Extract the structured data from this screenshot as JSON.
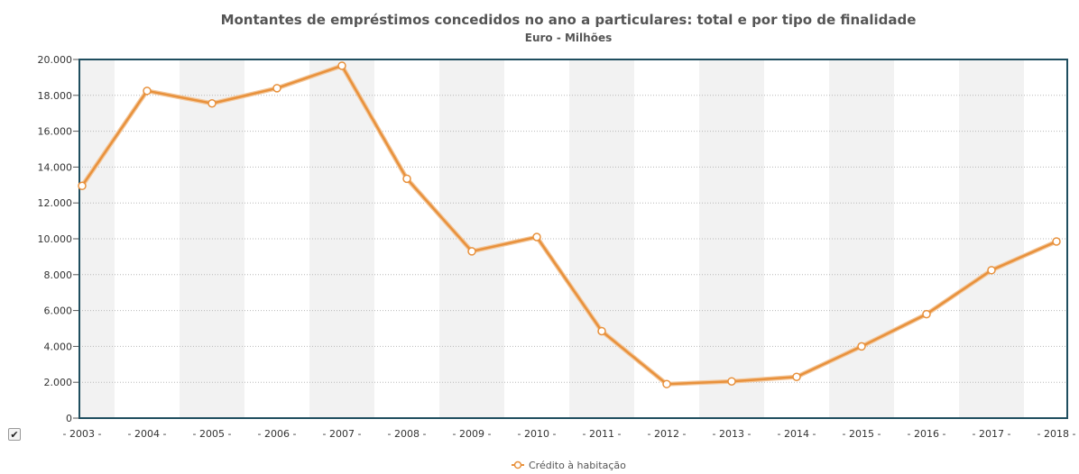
{
  "chart_data": {
    "type": "line",
    "title": "Montantes de empréstimos concedidos no ano a particulares: total e por tipo de finalidade",
    "subtitle": "Euro - Milhões",
    "categories": [
      "2003",
      "2004",
      "2005",
      "2006",
      "2007",
      "2008",
      "2009",
      "2010",
      "2011",
      "2012",
      "2013",
      "2014",
      "2015",
      "2016",
      "2017",
      "2018"
    ],
    "category_labels": [
      "- 2003 -",
      "- 2004 -",
      "- 2005 -",
      "- 2006 -",
      "- 2007 -",
      "- 2008 -",
      "- 2009 -",
      "- 2010 -",
      "- 2011 -",
      "- 2012 -",
      "- 2013 -",
      "- 2014 -",
      "- 2015 -",
      "- 2016 -",
      "- 2017 -",
      "- 2018 -"
    ],
    "series": [
      {
        "name": "Crédito à habitação",
        "color": "#e8913c",
        "values": [
          12950,
          18250,
          17550,
          18400,
          19650,
          13350,
          9300,
          10100,
          4850,
          1900,
          2050,
          2300,
          4000,
          5800,
          8250,
          9850
        ]
      }
    ],
    "ylim": [
      0,
      20000
    ],
    "y_ticks": [
      0,
      2000,
      4000,
      6000,
      8000,
      10000,
      12000,
      14000,
      16000,
      18000,
      20000
    ],
    "y_tick_labels": [
      "0",
      "2.000",
      "4.000",
      "6.000",
      "8.000",
      "10.000",
      "12.000",
      "14.000",
      "16.000",
      "18.000",
      "20.000"
    ],
    "grid": true,
    "legend": "bottom-center",
    "frame_color": "#1f4e5f",
    "band_color": "#f2f2f2"
  },
  "controls": {
    "checkbox_glyph": "✔"
  }
}
